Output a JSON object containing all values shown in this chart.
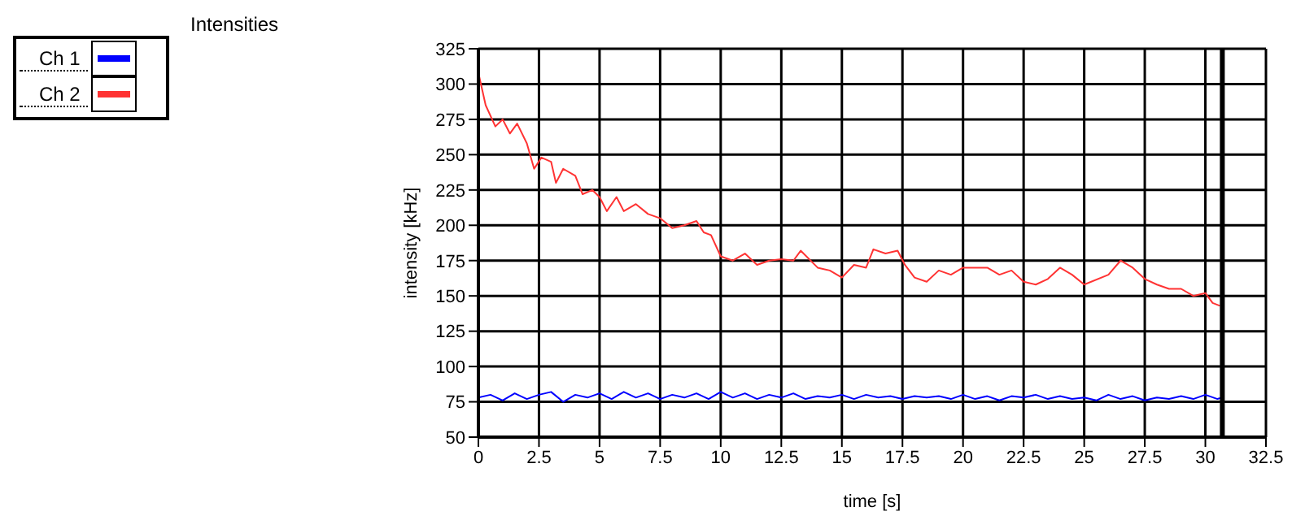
{
  "chart_data": {
    "type": "line",
    "title": "Intensities",
    "xlabel": "time [s]",
    "ylabel": "intensity [kHz]",
    "xlim": [
      0,
      32.5
    ],
    "xticks": [
      0,
      2.5,
      5,
      7.5,
      10,
      12.5,
      15,
      17.5,
      20,
      22.5,
      25,
      27.5,
      30,
      32.5
    ],
    "ylim": [
      50,
      325
    ],
    "yticks": [
      50,
      75,
      100,
      125,
      150,
      175,
      200,
      225,
      250,
      275,
      300,
      325
    ],
    "grid": true,
    "legend": "top left",
    "marker": "none",
    "line_style": "solid",
    "ref_lines": [
      {
        "axis": "x",
        "value": 30.7,
        "color": "#000000"
      }
    ],
    "series": [
      {
        "name": "Ch 1",
        "color": "#0000ff",
        "x": [
          0,
          0.5,
          1,
          1.5,
          2,
          2.5,
          3,
          3.5,
          4,
          4.5,
          5,
          5.5,
          6,
          6.5,
          7,
          7.5,
          8,
          8.5,
          9,
          9.5,
          10,
          10.5,
          11,
          11.5,
          12,
          12.5,
          13,
          13.5,
          14,
          14.5,
          15,
          15.5,
          16,
          16.5,
          17,
          17.5,
          18,
          18.5,
          19,
          19.5,
          20,
          20.5,
          21,
          21.5,
          22,
          22.5,
          23,
          23.5,
          24,
          24.5,
          25,
          25.5,
          26,
          26.5,
          27,
          27.5,
          28,
          28.5,
          29,
          29.5,
          30,
          30.5,
          30.7
        ],
        "values": [
          78,
          80,
          76,
          81,
          77,
          80,
          82,
          75,
          80,
          78,
          81,
          77,
          82,
          78,
          81,
          77,
          80,
          78,
          81,
          77,
          82,
          78,
          81,
          77,
          80,
          78,
          81,
          77,
          79,
          78,
          80,
          77,
          80,
          78,
          79,
          77,
          79,
          78,
          79,
          77,
          80,
          77,
          79,
          76,
          79,
          78,
          80,
          77,
          79,
          77,
          78,
          76,
          80,
          77,
          79,
          76,
          78,
          77,
          79,
          77,
          80,
          77,
          78
        ]
      },
      {
        "name": "Ch 2",
        "color": "#ff3333",
        "x": [
          0,
          0.3,
          0.7,
          1,
          1.3,
          1.6,
          2,
          2.3,
          2.6,
          3,
          3.2,
          3.5,
          4,
          4.3,
          4.7,
          5,
          5.3,
          5.7,
          6,
          6.5,
          7,
          7.5,
          8,
          8.5,
          9,
          9.3,
          9.6,
          10,
          10.5,
          11,
          11.5,
          12,
          12.5,
          13,
          13.3,
          14,
          14.5,
          15,
          15.5,
          16,
          16.3,
          16.8,
          17.3,
          17.6,
          18,
          18.5,
          19,
          19.5,
          20,
          21,
          21.5,
          22,
          22.5,
          23,
          23.5,
          24,
          24.5,
          25,
          26,
          26.5,
          27,
          27.5,
          28,
          28.5,
          29,
          29.5,
          30,
          30.3,
          30.6
        ],
        "values": [
          308,
          285,
          270,
          275,
          265,
          272,
          258,
          240,
          248,
          245,
          230,
          240,
          235,
          222,
          225,
          220,
          210,
          220,
          210,
          215,
          208,
          205,
          198,
          200,
          203,
          195,
          193,
          178,
          175,
          180,
          172,
          175,
          176,
          175,
          182,
          170,
          168,
          163,
          172,
          170,
          183,
          180,
          182,
          172,
          163,
          160,
          168,
          165,
          170,
          170,
          165,
          168,
          160,
          158,
          162,
          170,
          165,
          158,
          165,
          175,
          170,
          162,
          158,
          155,
          155,
          150,
          152,
          145,
          143
        ]
      }
    ]
  }
}
